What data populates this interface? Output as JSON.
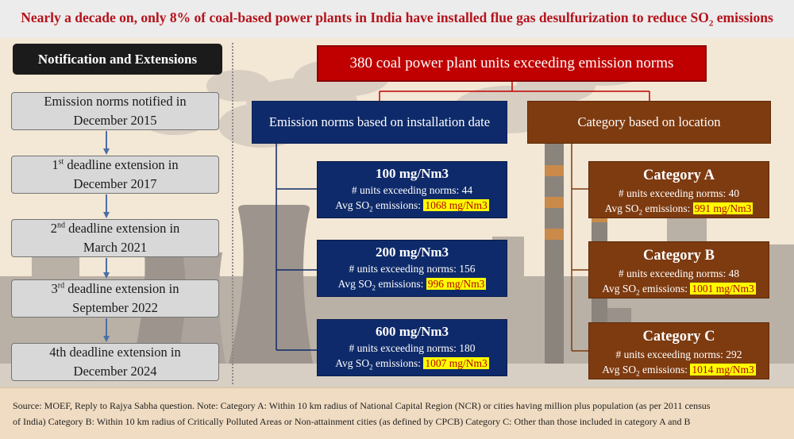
{
  "header": {
    "title": "Nearly a decade on, only 8% of coal-based power plants in India have installed flue gas desulfurization to reduce SO",
    "title_sub": "2",
    "title_end": " emissions"
  },
  "notifications": {
    "title": "Notification and Extensions",
    "steps": [
      {
        "pre": "Emission norms notified in",
        "sup": "",
        "post": "",
        "line2": "December 2015"
      },
      {
        "pre": "1",
        "sup": "st",
        "post": " deadline extension in",
        "line2": "December 2017"
      },
      {
        "pre": "2",
        "sup": "nd",
        "post": " deadline extension in",
        "line2": "March 2021"
      },
      {
        "pre": "3",
        "sup": "rd",
        "post": " deadline extension in",
        "line2": "September 2022"
      },
      {
        "pre": "4th deadline extension in",
        "sup": "",
        "post": "",
        "line2": "December 2024"
      }
    ]
  },
  "diagram": {
    "top": "380 coal power plant units exceeding emission norms",
    "left_header": "Emission norms based on installation date",
    "right_header": "Category based on  location",
    "units_label": "# units exceeding norms: ",
    "avg_label": "Avg SO",
    "avg_sub": "2",
    "avg_suffix": " emissions: ",
    "left_boxes": [
      {
        "title": "100 mg/Nm3",
        "units": "44",
        "avg": "1068 mg/Nm3"
      },
      {
        "title": "200 mg/Nm3",
        "units": "156",
        "avg": "996 mg/Nm3"
      },
      {
        "title": "600 mg/Nm3",
        "units": "180",
        "avg": "1007 mg/Nm3"
      }
    ],
    "right_boxes": [
      {
        "title": "Category A",
        "units": "40",
        "avg": "991 mg/Nm3"
      },
      {
        "title": "Category B",
        "units": "48",
        "avg": "1001 mg/Nm3"
      },
      {
        "title": "Category C",
        "units": "292",
        "avg": "1014 mg/Nm3"
      }
    ]
  },
  "footer": {
    "line1": "Source: MOEF, Reply to Rajya Sabha question. Note: Category A: Within 10 km radius of National Capital Region (NCR) or cities having million plus population (as per 2011 census",
    "line2": "of India) Category B: Within 10 km radius of Critically Polluted Areas or Non-attainment cities (as defined by CPCB) Category C: Other than those included in category A and B"
  },
  "colors": {
    "accent_red": "#c00000",
    "navy": "#0e2a6a",
    "brown": "#7e3b10",
    "highlight": "#ffff00"
  }
}
